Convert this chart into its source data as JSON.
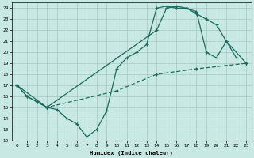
{
  "xlabel": "Humidex (Indice chaleur)",
  "bg_color": "#c8e8e4",
  "grid_color": "#a8c8c4",
  "line_color": "#1a6b5a",
  "xlim": [
    -0.5,
    23.5
  ],
  "ylim": [
    12,
    24.5
  ],
  "xticks": [
    0,
    1,
    2,
    3,
    4,
    5,
    6,
    7,
    8,
    9,
    10,
    11,
    12,
    13,
    14,
    15,
    16,
    17,
    18,
    19,
    20,
    21,
    22,
    23
  ],
  "yticks": [
    12,
    13,
    14,
    15,
    16,
    17,
    18,
    19,
    20,
    21,
    22,
    23,
    24
  ],
  "c1x": [
    0,
    1,
    2,
    3,
    4,
    5,
    6,
    7,
    8,
    9,
    10,
    11,
    12,
    13,
    14,
    15,
    16,
    17,
    18,
    19,
    20,
    21,
    22
  ],
  "c1y": [
    17.0,
    16.0,
    15.5,
    15.0,
    14.8,
    14.0,
    13.5,
    12.3,
    13.0,
    14.7,
    18.5,
    19.5,
    20.0,
    20.7,
    24.0,
    24.2,
    24.0,
    24.0,
    23.5,
    23.0,
    22.5,
    21.0,
    19.5
  ],
  "c2x": [
    0,
    3,
    14,
    15,
    16,
    17,
    18,
    19,
    20,
    21,
    23
  ],
  "c2y": [
    17.0,
    15.0,
    22.0,
    24.0,
    24.2,
    24.0,
    23.7,
    20.0,
    19.5,
    21.0,
    19.0
  ],
  "c3x": [
    0,
    1,
    2,
    3,
    10,
    14,
    18,
    23
  ],
  "c3y": [
    17.0,
    16.0,
    15.5,
    15.0,
    16.5,
    18.0,
    18.5,
    19.0
  ]
}
